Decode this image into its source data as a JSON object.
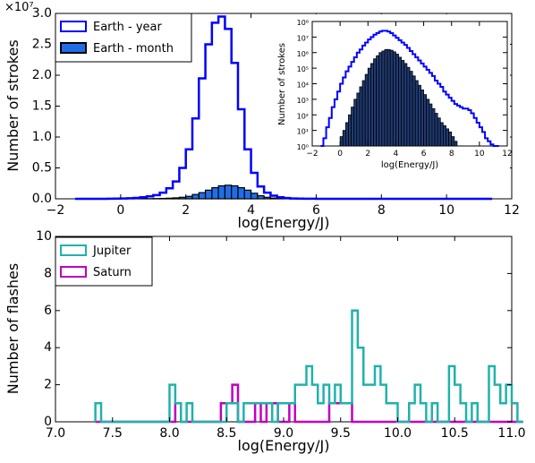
{
  "chart_data": [
    {
      "type": "area",
      "title": "",
      "xlabel": "log(Energy/J)",
      "ylabel": "Number of strokes",
      "y_multiplier_label": "×10⁷",
      "xlim": [
        -2,
        12
      ],
      "ylim": [
        0,
        3.0
      ],
      "x_ticks": [
        "−2",
        "0",
        "2",
        "4",
        "6",
        "8",
        "10",
        "12"
      ],
      "y_ticks": [
        "0.0",
        "0.5",
        "1.0",
        "1.5",
        "2.0",
        "2.5",
        "3.0"
      ],
      "legend_position": "top-left",
      "series": [
        {
          "name": "Earth - year",
          "style": "step-outline",
          "color": "#0000ff",
          "x": [
            -1.4,
            -1.2,
            -1.0,
            -0.8,
            -0.6,
            -0.4,
            -0.2,
            0.0,
            0.2,
            0.4,
            0.6,
            0.8,
            1.0,
            1.2,
            1.4,
            1.6,
            1.8,
            2.0,
            2.2,
            2.4,
            2.6,
            2.8,
            3.0,
            3.2,
            3.4,
            3.6,
            3.8,
            4.0,
            4.2,
            4.4,
            4.6,
            4.8,
            5.0,
            5.2,
            5.4,
            5.6,
            5.8,
            6.0,
            6.2,
            6.4,
            6.6,
            6.8,
            7.0,
            7.2,
            7.4,
            7.6,
            7.8,
            8.0,
            8.2,
            8.4,
            8.6,
            8.8,
            9.0,
            9.2,
            9.4,
            9.6,
            9.8,
            10.0,
            10.2,
            10.4,
            10.6,
            10.8,
            11.0,
            11.2
          ],
          "values": [
            0,
            0.0001,
            0.0002,
            0.0004,
            0.0008,
            0.0015,
            0.003,
            0.005,
            0.009,
            0.015,
            0.025,
            0.04,
            0.06,
            0.1,
            0.17,
            0.28,
            0.5,
            0.8,
            1.3,
            1.95,
            2.5,
            2.85,
            2.95,
            2.75,
            2.2,
            1.45,
            0.8,
            0.42,
            0.2,
            0.1,
            0.05,
            0.025,
            0.012,
            0.006,
            0.003,
            0.0015,
            0.001,
            0.0008,
            0.0006,
            0.0005,
            0.0004,
            0.0003,
            0.0002,
            0.0002,
            0.0002,
            0.0001,
            0.0001,
            0.0001,
            0.0001,
            0,
            0,
            0,
            0,
            0,
            0,
            0,
            0,
            0,
            0,
            0,
            0,
            0,
            0,
            0
          ]
        },
        {
          "name": "Earth - month",
          "style": "filled-bars",
          "color": "#1f6ee8",
          "x": [
            0.0,
            0.2,
            0.4,
            0.6,
            0.8,
            1.0,
            1.2,
            1.4,
            1.6,
            1.8,
            2.0,
            2.2,
            2.4,
            2.6,
            2.8,
            3.0,
            3.2,
            3.4,
            3.6,
            3.8,
            4.0,
            4.2,
            4.4,
            4.6,
            4.8,
            5.0,
            5.2,
            5.4,
            5.6,
            5.8,
            6.0,
            6.2,
            6.4,
            6.6,
            6.8,
            7.0,
            7.2,
            7.4,
            7.6,
            7.8,
            8.0,
            8.2
          ],
          "values": [
            0.0003,
            0.0005,
            0.001,
            0.0015,
            0.0025,
            0.004,
            0.006,
            0.01,
            0.015,
            0.025,
            0.04,
            0.07,
            0.1,
            0.14,
            0.18,
            0.21,
            0.22,
            0.21,
            0.18,
            0.14,
            0.09,
            0.05,
            0.025,
            0.012,
            0.006,
            0.003,
            0.0015,
            0.001,
            0.0005,
            0.0003,
            0.0002,
            0.0001,
            0.0001,
            0.0001,
            0,
            0,
            0,
            0,
            0,
            0,
            0,
            0
          ]
        }
      ]
    },
    {
      "type": "area",
      "inset": true,
      "xlabel": "log(Energy/J)",
      "ylabel": "Number of strokes",
      "xlim": [
        -2,
        12
      ],
      "ylim_log10": [
        0,
        8
      ],
      "scale_y": "log",
      "x_ticks": [
        "−2",
        "0",
        "2",
        "4",
        "6",
        "8",
        "10",
        "12"
      ],
      "y_ticks": [
        "10⁰",
        "10¹",
        "10²",
        "10³",
        "10⁴",
        "10⁵",
        "10⁶",
        "10⁷",
        "10⁸"
      ],
      "series": [
        {
          "name": "Earth - year",
          "style": "step-outline",
          "color": "#0000ff",
          "x": [
            -1.4,
            -1.2,
            -1.0,
            -0.8,
            -0.6,
            -0.4,
            -0.2,
            0.0,
            0.2,
            0.4,
            0.6,
            0.8,
            1.0,
            1.2,
            1.4,
            1.6,
            1.8,
            2.0,
            2.2,
            2.4,
            2.6,
            2.8,
            3.0,
            3.2,
            3.4,
            3.6,
            3.8,
            4.0,
            4.2,
            4.4,
            4.6,
            4.8,
            5.0,
            5.2,
            5.4,
            5.6,
            5.8,
            6.0,
            6.2,
            6.4,
            6.6,
            6.8,
            7.0,
            7.2,
            7.4,
            7.6,
            7.8,
            8.0,
            8.2,
            8.4,
            8.6,
            8.8,
            9.0,
            9.2,
            9.4,
            9.6,
            9.8,
            10.0,
            10.2,
            10.4,
            10.6,
            10.8,
            11.0,
            11.2
          ],
          "log10_values": [
            0.0,
            0.5,
            1.2,
            1.8,
            2.5,
            3.0,
            3.5,
            4.0,
            4.4,
            4.8,
            5.1,
            5.4,
            5.7,
            6.0,
            6.2,
            6.45,
            6.65,
            6.85,
            7.0,
            7.15,
            7.25,
            7.35,
            7.4,
            7.4,
            7.35,
            7.25,
            7.1,
            6.95,
            6.8,
            6.65,
            6.5,
            6.3,
            6.1,
            5.9,
            5.7,
            5.5,
            5.3,
            5.1,
            4.9,
            4.7,
            4.5,
            4.2,
            4.0,
            3.8,
            3.5,
            3.3,
            3.1,
            2.9,
            2.7,
            2.6,
            2.5,
            2.4,
            2.4,
            2.3,
            2.1,
            1.8,
            1.5,
            1.2,
            0.9,
            0.5,
            0.3,
            0.1,
            0.0,
            0.0
          ]
        },
        {
          "name": "Earth - month",
          "style": "filled-bars",
          "color": "#1f3b73",
          "x": [
            0.0,
            0.2,
            0.4,
            0.6,
            0.8,
            1.0,
            1.2,
            1.4,
            1.6,
            1.8,
            2.0,
            2.2,
            2.4,
            2.6,
            2.8,
            3.0,
            3.2,
            3.4,
            3.6,
            3.8,
            4.0,
            4.2,
            4.4,
            4.6,
            4.8,
            5.0,
            5.2,
            5.4,
            5.6,
            5.8,
            6.0,
            6.2,
            6.4,
            6.6,
            6.8,
            7.0,
            7.2,
            7.4,
            7.6,
            7.8,
            8.0,
            8.2
          ],
          "log10_values": [
            0.6,
            1.0,
            1.5,
            2.0,
            2.5,
            3.0,
            3.4,
            3.8,
            4.2,
            4.6,
            5.0,
            5.3,
            5.6,
            5.8,
            6.0,
            6.1,
            6.2,
            6.2,
            6.15,
            6.05,
            5.9,
            5.7,
            5.5,
            5.3,
            5.05,
            4.8,
            4.5,
            4.2,
            3.9,
            3.6,
            3.3,
            3.0,
            2.7,
            2.4,
            2.1,
            1.8,
            1.5,
            1.3,
            1.1,
            0.9,
            0.6,
            0.3
          ]
        }
      ]
    },
    {
      "type": "area",
      "xlabel": "log(Energy/J)",
      "ylabel": "Number of flashes",
      "xlim": [
        7.0,
        11.0
      ],
      "ylim": [
        0,
        10
      ],
      "x_ticks": [
        "7.0",
        "7.5",
        "8.0",
        "8.5",
        "9.0",
        "9.5",
        "10.0",
        "10.5",
        "11.0"
      ],
      "y_ticks": [
        "0",
        "2",
        "4",
        "6",
        "8",
        "10"
      ],
      "legend_position": "top-left",
      "series": [
        {
          "name": "Jupiter",
          "style": "step-outline",
          "color": "#20b2aa",
          "x_start": 7.35,
          "bin_width": 0.05,
          "values": [
            1,
            0,
            0,
            0,
            0,
            0,
            0,
            0,
            0,
            0,
            0,
            0,
            0,
            2,
            1,
            0,
            1,
            0,
            0,
            0,
            0,
            0,
            0,
            1,
            1,
            0,
            1,
            1,
            1,
            1,
            1,
            0,
            1,
            1,
            1,
            2,
            2,
            3,
            2,
            1,
            2,
            1,
            2,
            1,
            1,
            6,
            4,
            2,
            2,
            3,
            2,
            1,
            1,
            0,
            0,
            1,
            2,
            1,
            0,
            1,
            0,
            0,
            3,
            2,
            1,
            0,
            1,
            0,
            0,
            3,
            2,
            1,
            2,
            1,
            0
          ]
        },
        {
          "name": "Saturn",
          "style": "step-outline",
          "color": "#bf00bf",
          "x_start": 7.35,
          "bin_width": 0.05,
          "values": [
            0,
            0,
            0,
            0,
            0,
            0,
            0,
            0,
            0,
            0,
            0,
            0,
            0,
            0,
            1,
            0,
            0,
            0,
            0,
            0,
            0,
            0,
            1,
            1,
            2,
            0,
            0,
            0,
            1,
            0,
            1,
            1,
            0,
            0,
            1,
            0,
            0,
            0,
            0,
            0,
            0,
            1,
            1,
            1,
            1,
            0,
            0,
            0,
            0,
            0,
            0,
            0,
            0,
            0,
            0,
            0,
            0,
            0,
            0,
            0,
            0,
            0,
            0,
            0,
            0,
            0,
            0,
            0,
            0,
            0,
            0,
            0,
            0,
            0,
            0
          ]
        }
      ]
    }
  ]
}
